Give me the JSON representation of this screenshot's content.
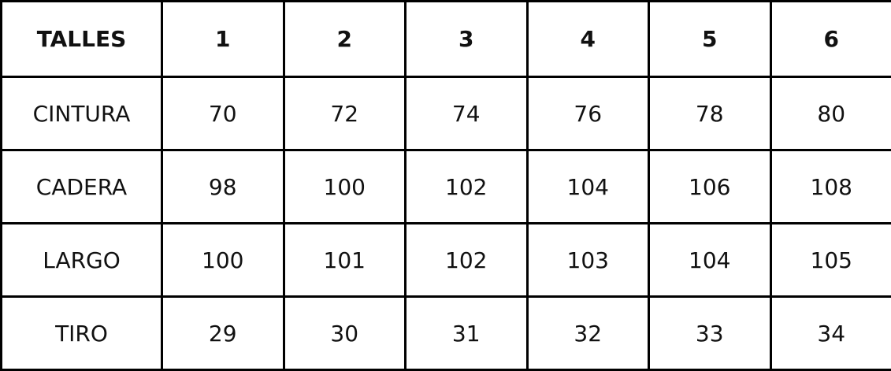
{
  "table": {
    "header": [
      "TALLES",
      "1",
      "2",
      "3",
      "4",
      "5",
      "6"
    ],
    "rows": [
      [
        "CINTURA",
        "70",
        "72",
        "74",
        "76",
        "78",
        "80"
      ],
      [
        "CADERA",
        "98",
        "100",
        "102",
        "104",
        "106",
        "108"
      ],
      [
        "LARGO",
        "100",
        "101",
        "102",
        "103",
        "104",
        "105"
      ],
      [
        "TIRO",
        "29",
        "30",
        "31",
        "32",
        "33",
        "34"
      ]
    ]
  }
}
